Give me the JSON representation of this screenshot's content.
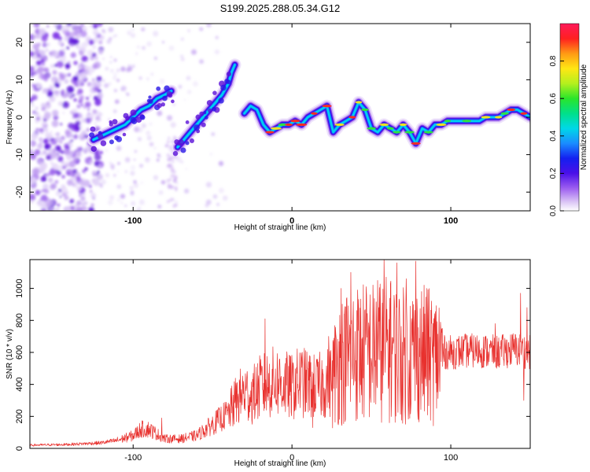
{
  "title": "S199.2025.288.05.34.G12",
  "chart_data": [
    {
      "type": "heatmap",
      "name": "spectrogram",
      "xlabel": "Height of straight line (km)",
      "ylabel": "Frequency (Hz)",
      "xlim": [
        -165,
        150
      ],
      "ylim": [
        -25,
        25
      ],
      "xticks": [
        -100,
        0,
        100
      ],
      "yticks": [
        -20,
        -10,
        0,
        10,
        20
      ],
      "colorbar": {
        "label": "Normalized spectral amplitude",
        "range": [
          0,
          1
        ],
        "ticks": [
          0.0,
          0.2,
          0.4,
          0.6,
          0.8
        ],
        "tick_labels": [
          "0.0",
          "0.2",
          "0.4",
          "0.6",
          "0.8"
        ]
      },
      "ridge": {
        "x": [
          -125,
          -120,
          -115,
          -110,
          -105,
          -100,
          -95,
          -90,
          -85,
          -80,
          -76,
          -72,
          -68,
          -64,
          -60,
          -56,
          -52,
          -48,
          -44,
          -40,
          -38,
          -36,
          -30,
          -26,
          -22,
          -18,
          -14,
          -10,
          -6,
          -2,
          2,
          6,
          10,
          14,
          18,
          22,
          26,
          30,
          34,
          38,
          42,
          46,
          50,
          54,
          58,
          62,
          66,
          70,
          74,
          78,
          82,
          86,
          90,
          94,
          98,
          102,
          106,
          110,
          114,
          118,
          122,
          126,
          130,
          134,
          138,
          142,
          146,
          150
        ],
        "y": [
          -6,
          -5,
          -4,
          -3,
          -2,
          0,
          2,
          3,
          5,
          6,
          7,
          -8,
          -6,
          -4,
          -2,
          0,
          2,
          4,
          6,
          9,
          12,
          14,
          1,
          3,
          2,
          -2,
          -4,
          -3,
          -2,
          -2,
          -1,
          -2,
          0,
          1,
          2,
          3,
          -4,
          -2,
          -1,
          0,
          4,
          2,
          -3,
          -4,
          -2,
          -3,
          -4,
          -2,
          -4,
          -7,
          -3,
          -4,
          -2,
          -2,
          -1,
          -1,
          -1,
          -1,
          -1,
          -1,
          0,
          0,
          0,
          1,
          2,
          2,
          1,
          0
        ]
      }
    },
    {
      "type": "line",
      "name": "snr",
      "xlabel": "Height of straight line (km)",
      "ylabel": "SNR (10 * v/v)",
      "xlim": [
        -165,
        150
      ],
      "ylim": [
        0,
        1180
      ],
      "xticks": [
        -100,
        0,
        100
      ],
      "yticks": [
        0,
        200,
        400,
        600,
        800,
        1000
      ],
      "color": "#e8312e",
      "envelope": {
        "x": [
          -165,
          -140,
          -120,
          -110,
          -100,
          -95,
          -90,
          -85,
          -80,
          -70,
          -60,
          -50,
          -40,
          -35,
          -30,
          -25,
          -20,
          -15,
          -10,
          -5,
          0,
          5,
          10,
          15,
          20,
          25,
          30,
          40,
          50,
          60,
          70,
          80,
          90,
          95,
          100,
          110,
          120,
          130,
          140,
          150
        ],
        "y": [
          20,
          25,
          35,
          50,
          80,
          120,
          120,
          90,
          60,
          60,
          80,
          150,
          220,
          300,
          350,
          330,
          380,
          400,
          420,
          400,
          380,
          420,
          400,
          380,
          400,
          420,
          560,
          600,
          600,
          620,
          580,
          600,
          560,
          600,
          600,
          610,
          610,
          600,
          620,
          600
        ]
      },
      "spikes": [
        {
          "x": -82,
          "y": 190
        },
        {
          "x": -26,
          "y": 360
        },
        {
          "x": -17,
          "y": 810
        },
        {
          "x": 13,
          "y": 130
        },
        {
          "x": 23,
          "y": 700
        },
        {
          "x": 31,
          "y": 1000
        },
        {
          "x": 33,
          "y": 840
        },
        {
          "x": 37,
          "y": 1100
        },
        {
          "x": 47,
          "y": 960
        },
        {
          "x": 54,
          "y": 1050
        },
        {
          "x": 58,
          "y": 1180
        },
        {
          "x": 62,
          "y": 1030
        },
        {
          "x": 66,
          "y": 1160
        },
        {
          "x": 72,
          "y": 1060
        },
        {
          "x": 78,
          "y": 1170
        },
        {
          "x": 85,
          "y": 1000
        },
        {
          "x": 128,
          "y": 780
        },
        {
          "x": 144,
          "y": 970
        },
        {
          "x": 148,
          "y": 880
        },
        {
          "x": 146,
          "y": 300
        }
      ]
    }
  ]
}
